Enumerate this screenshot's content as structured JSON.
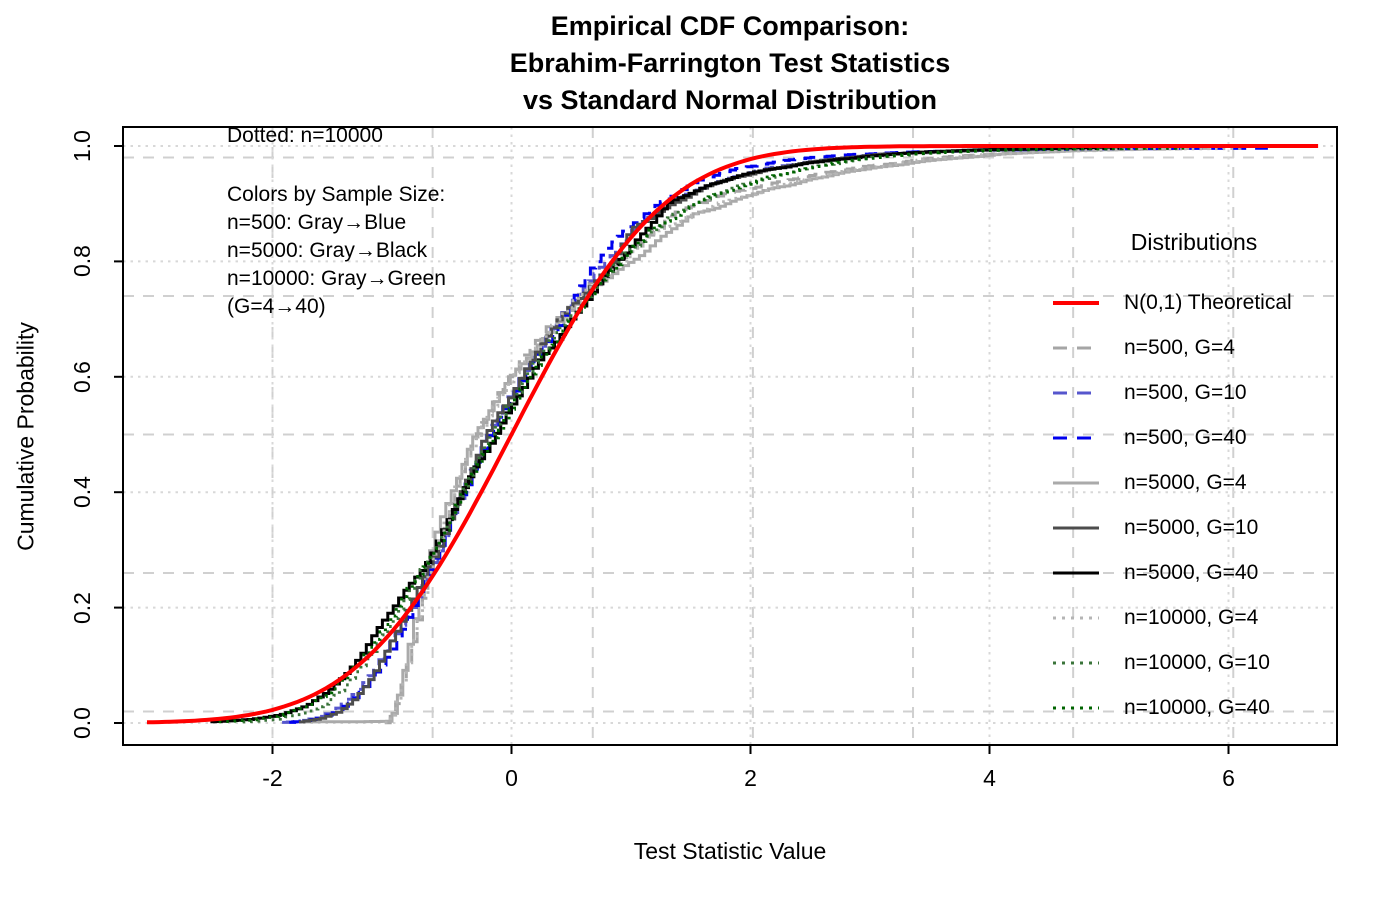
{
  "chart_data": {
    "type": "line",
    "title_lines": [
      "Empirical CDF Comparison:",
      "Ebrahim-Farrington Test Statistics",
      "vs Standard Normal Distribution"
    ],
    "xlabel": "Test Statistic Value",
    "ylabel": "Cumulative Probability",
    "xlim": [
      -3.25,
      6.91
    ],
    "ylim": [
      -0.04,
      1.04
    ],
    "x_ticks": [
      -2,
      0,
      2,
      4,
      6
    ],
    "x_tick_labels": [
      "-2",
      "0",
      "2",
      "4",
      "6"
    ],
    "y_ticks": [
      0,
      0.2,
      0.4,
      0.6,
      0.8,
      1.0
    ],
    "y_tick_labels": [
      "0.0",
      "0.2",
      "0.4",
      "0.6",
      "0.8",
      "1.0"
    ],
    "grid": {
      "dotted_color": "#d8d8d8",
      "dashed_color": "#d0d0d0",
      "dotted_x": [
        -2,
        0,
        2,
        4,
        6
      ],
      "dotted_y": [
        0,
        0.2,
        0.4,
        0.6,
        0.8,
        1.0
      ],
      "dashed_x": [
        -2.0,
        -0.66,
        0.68,
        2.02,
        3.36,
        4.7,
        6.04
      ],
      "dashed_y": [
        0.02,
        0.26,
        0.5,
        0.74,
        0.98
      ]
    },
    "annotations": {
      "dotted_note": "Dotted: n=10000",
      "colors_note_lines": [
        "Colors by Sample Size:",
        "n=500: Gray→Blue",
        "n=5000: Gray→Black",
        "n=10000: Gray→Green",
        "(G=4→40)"
      ]
    },
    "legend": {
      "title": "Distributions"
    },
    "series": [
      {
        "label": "N(0,1) Theoretical",
        "color": "#ff0000",
        "style": "solid",
        "width": 4,
        "theoretical_normal": {
          "mean": 0,
          "sd": 1
        },
        "range": [
          -3.05,
          6.77
        ]
      },
      {
        "label": "n=500, G=4",
        "color": "#a5a5a5",
        "style": "dashed",
        "width": 3,
        "points": [
          [
            -1.06,
            0
          ],
          [
            -1.0,
            0.015
          ],
          [
            -0.95,
            0.045
          ],
          [
            -0.88,
            0.1
          ],
          [
            -0.8,
            0.17
          ],
          [
            -0.72,
            0.24
          ],
          [
            -0.65,
            0.29
          ],
          [
            -0.56,
            0.355
          ],
          [
            -0.47,
            0.415
          ],
          [
            -0.38,
            0.465
          ],
          [
            -0.28,
            0.51
          ],
          [
            -0.12,
            0.565
          ],
          [
            0.06,
            0.625
          ],
          [
            0.3,
            0.69
          ],
          [
            0.6,
            0.752
          ],
          [
            0.95,
            0.81
          ],
          [
            1.35,
            0.885
          ],
          [
            1.8,
            0.917
          ],
          [
            2.3,
            0.942
          ],
          [
            2.9,
            0.963
          ],
          [
            3.5,
            0.979
          ],
          [
            4.2,
            0.989
          ],
          [
            4.9,
            0.9935
          ],
          [
            5.6,
            0.995
          ]
        ]
      },
      {
        "label": "n=500, G=10",
        "color": "#5656cd",
        "style": "dashed",
        "width": 3,
        "points": [
          [
            -1.92,
            0.001
          ],
          [
            -1.75,
            0.004
          ],
          [
            -1.6,
            0.012
          ],
          [
            -1.45,
            0.028
          ],
          [
            -1.3,
            0.055
          ],
          [
            -1.15,
            0.095
          ],
          [
            -1.0,
            0.145
          ],
          [
            -0.85,
            0.2
          ],
          [
            -0.7,
            0.26
          ],
          [
            -0.6,
            0.305
          ],
          [
            -0.48,
            0.365
          ],
          [
            -0.36,
            0.425
          ],
          [
            -0.26,
            0.475
          ],
          [
            -0.16,
            0.52
          ],
          [
            0.0,
            0.578
          ],
          [
            0.2,
            0.645
          ],
          [
            0.45,
            0.715
          ],
          [
            0.7,
            0.78
          ],
          [
            1.0,
            0.855
          ],
          [
            1.35,
            0.905
          ],
          [
            1.7,
            0.938
          ],
          [
            2.1,
            0.96
          ],
          [
            2.6,
            0.976
          ],
          [
            3.1,
            0.986
          ],
          [
            3.8,
            0.992
          ],
          [
            4.5,
            0.995
          ],
          [
            5.1,
            0.996
          ]
        ]
      },
      {
        "label": "n=500, G=40",
        "color": "#0000ee",
        "style": "dashed",
        "width": 3,
        "points": [
          [
            -1.86,
            0.001
          ],
          [
            -1.7,
            0.005
          ],
          [
            -1.52,
            0.015
          ],
          [
            -1.36,
            0.035
          ],
          [
            -1.22,
            0.065
          ],
          [
            -1.08,
            0.105
          ],
          [
            -0.95,
            0.15
          ],
          [
            -0.82,
            0.205
          ],
          [
            -0.7,
            0.26
          ],
          [
            -0.58,
            0.315
          ],
          [
            -0.45,
            0.38
          ],
          [
            -0.32,
            0.44
          ],
          [
            -0.2,
            0.498
          ],
          [
            -0.05,
            0.55
          ],
          [
            0.12,
            0.607
          ],
          [
            0.35,
            0.675
          ],
          [
            0.65,
            0.79
          ],
          [
            0.95,
            0.855
          ],
          [
            1.25,
            0.905
          ],
          [
            1.55,
            0.94
          ],
          [
            1.9,
            0.962
          ],
          [
            2.3,
            0.976
          ],
          [
            2.8,
            0.985
          ],
          [
            3.4,
            0.99
          ],
          [
            4.2,
            0.9935
          ],
          [
            5.0,
            0.9955
          ],
          [
            6.35,
            0.996
          ]
        ]
      },
      {
        "label": "n=5000, G=4",
        "color": "#aaaaaa",
        "style": "solid",
        "width": 3,
        "points": [
          [
            -1.72,
            0.002
          ],
          [
            -1.35,
            0.002
          ],
          [
            -1.04,
            0.003
          ],
          [
            -0.99,
            0.02
          ],
          [
            -0.94,
            0.06
          ],
          [
            -0.88,
            0.12
          ],
          [
            -0.81,
            0.19
          ],
          [
            -0.73,
            0.26
          ],
          [
            -0.66,
            0.315
          ],
          [
            -0.58,
            0.365
          ],
          [
            -0.5,
            0.41
          ],
          [
            -0.42,
            0.45
          ],
          [
            -0.35,
            0.487
          ],
          [
            -0.27,
            0.515
          ],
          [
            -0.15,
            0.555
          ],
          [
            0.0,
            0.6
          ],
          [
            0.2,
            0.655
          ],
          [
            0.45,
            0.71
          ],
          [
            0.75,
            0.765
          ],
          [
            1.1,
            0.818
          ],
          [
            1.5,
            0.88
          ],
          [
            2.0,
            0.916
          ],
          [
            2.5,
            0.943
          ],
          [
            3.0,
            0.962
          ],
          [
            3.55,
            0.976
          ],
          [
            4.1,
            0.986
          ],
          [
            4.7,
            0.992
          ],
          [
            5.3,
            0.995
          ],
          [
            5.85,
            0.996
          ]
        ]
      },
      {
        "label": "n=5000, G=10",
        "color": "#4d4d4d",
        "style": "solid",
        "width": 3,
        "points": [
          [
            -1.78,
            0.002
          ],
          [
            -1.6,
            0.008
          ],
          [
            -1.45,
            0.02
          ],
          [
            -1.32,
            0.042
          ],
          [
            -1.2,
            0.075
          ],
          [
            -1.08,
            0.115
          ],
          [
            -0.95,
            0.165
          ],
          [
            -0.82,
            0.22
          ],
          [
            -0.7,
            0.272
          ],
          [
            -0.58,
            0.325
          ],
          [
            -0.46,
            0.385
          ],
          [
            -0.34,
            0.44
          ],
          [
            -0.25,
            0.485
          ],
          [
            -0.12,
            0.535
          ],
          [
            0.05,
            0.595
          ],
          [
            0.25,
            0.66
          ],
          [
            0.5,
            0.725
          ],
          [
            0.8,
            0.79
          ],
          [
            1.0,
            0.855
          ],
          [
            1.35,
            0.902
          ],
          [
            1.7,
            0.936
          ],
          [
            2.1,
            0.958
          ],
          [
            2.6,
            0.976
          ],
          [
            3.1,
            0.986
          ],
          [
            3.9,
            0.9925
          ],
          [
            4.5,
            0.9955
          ],
          [
            5.0,
            0.996
          ]
        ]
      },
      {
        "label": "n=5000, G=40",
        "color": "#000000",
        "style": "solid",
        "width": 3,
        "points": [
          [
            -2.52,
            0.002
          ],
          [
            -2.2,
            0.006
          ],
          [
            -1.95,
            0.014
          ],
          [
            -1.72,
            0.03
          ],
          [
            -1.55,
            0.055
          ],
          [
            -1.4,
            0.085
          ],
          [
            -1.25,
            0.125
          ],
          [
            -1.1,
            0.17
          ],
          [
            -0.95,
            0.215
          ],
          [
            -0.8,
            0.258
          ],
          [
            -0.68,
            0.295
          ],
          [
            -0.55,
            0.345
          ],
          [
            -0.42,
            0.4
          ],
          [
            -0.28,
            0.455
          ],
          [
            -0.14,
            0.505
          ],
          [
            0.02,
            0.558
          ],
          [
            0.2,
            0.617
          ],
          [
            0.42,
            0.682
          ],
          [
            0.68,
            0.748
          ],
          [
            0.98,
            0.825
          ],
          [
            1.3,
            0.9
          ],
          [
            1.65,
            0.934
          ],
          [
            2.0,
            0.954
          ],
          [
            2.45,
            0.97
          ],
          [
            2.95,
            0.982
          ],
          [
            3.45,
            0.99
          ],
          [
            4.0,
            0.994
          ],
          [
            4.6,
            0.9955
          ],
          [
            5.1,
            0.996
          ]
        ]
      },
      {
        "label": "n=10000, G=4",
        "color": "#b5b5b5",
        "style": "dotted",
        "width": 3,
        "points": [
          [
            -1.06,
            0.001
          ],
          [
            -1.0,
            0.018
          ],
          [
            -0.94,
            0.055
          ],
          [
            -0.87,
            0.115
          ],
          [
            -0.79,
            0.185
          ],
          [
            -0.71,
            0.25
          ],
          [
            -0.64,
            0.3
          ],
          [
            -0.55,
            0.36
          ],
          [
            -0.46,
            0.42
          ],
          [
            -0.37,
            0.468
          ],
          [
            -0.27,
            0.508
          ],
          [
            -0.13,
            0.556
          ],
          [
            0.04,
            0.61
          ],
          [
            0.26,
            0.672
          ],
          [
            0.54,
            0.735
          ],
          [
            0.88,
            0.795
          ],
          [
            1.28,
            0.862
          ],
          [
            1.72,
            0.9
          ],
          [
            2.2,
            0.93
          ],
          [
            2.75,
            0.955
          ],
          [
            3.35,
            0.974
          ],
          [
            3.95,
            0.985
          ],
          [
            4.6,
            0.991
          ],
          [
            5.3,
            0.9945
          ],
          [
            6.1,
            0.996
          ]
        ]
      },
      {
        "label": "n=10000, G=10",
        "color": "#3a743a",
        "style": "dotted",
        "width": 3,
        "points": [
          [
            -2.25,
            0.002
          ],
          [
            -2.0,
            0.006
          ],
          [
            -1.78,
            0.015
          ],
          [
            -1.58,
            0.032
          ],
          [
            -1.42,
            0.06
          ],
          [
            -1.27,
            0.095
          ],
          [
            -1.12,
            0.14
          ],
          [
            -0.97,
            0.19
          ],
          [
            -0.83,
            0.24
          ],
          [
            -0.7,
            0.285
          ],
          [
            -0.57,
            0.335
          ],
          [
            -0.44,
            0.393
          ],
          [
            -0.31,
            0.45
          ],
          [
            -0.18,
            0.5
          ],
          [
            -0.02,
            0.558
          ],
          [
            0.17,
            0.62
          ],
          [
            0.4,
            0.685
          ],
          [
            0.67,
            0.75
          ],
          [
            0.97,
            0.818
          ],
          [
            1.3,
            0.875
          ],
          [
            1.68,
            0.915
          ],
          [
            2.08,
            0.942
          ],
          [
            2.5,
            0.963
          ],
          [
            3.0,
            0.98
          ],
          [
            3.55,
            0.989
          ],
          [
            4.15,
            0.9935
          ],
          [
            4.8,
            0.9955
          ],
          [
            5.35,
            0.996
          ]
        ]
      },
      {
        "label": "n=10000, G=40",
        "color": "#006400",
        "style": "dotted",
        "width": 3,
        "points": [
          [
            -2.45,
            0.002
          ],
          [
            -2.15,
            0.006
          ],
          [
            -1.9,
            0.015
          ],
          [
            -1.68,
            0.033
          ],
          [
            -1.5,
            0.06
          ],
          [
            -1.34,
            0.092
          ],
          [
            -1.18,
            0.135
          ],
          [
            -1.03,
            0.18
          ],
          [
            -0.88,
            0.228
          ],
          [
            -0.74,
            0.272
          ],
          [
            -0.61,
            0.318
          ],
          [
            -0.48,
            0.37
          ],
          [
            -0.35,
            0.425
          ],
          [
            -0.21,
            0.478
          ],
          [
            -0.07,
            0.527
          ],
          [
            0.1,
            0.585
          ],
          [
            0.3,
            0.648
          ],
          [
            0.55,
            0.715
          ],
          [
            0.84,
            0.79
          ],
          [
            1.16,
            0.855
          ],
          [
            1.52,
            0.9
          ],
          [
            1.92,
            0.932
          ],
          [
            2.35,
            0.957
          ],
          [
            2.85,
            0.9765
          ],
          [
            3.4,
            0.987
          ],
          [
            4.0,
            0.9925
          ],
          [
            4.7,
            0.995
          ],
          [
            5.65,
            0.9965
          ]
        ]
      }
    ]
  }
}
